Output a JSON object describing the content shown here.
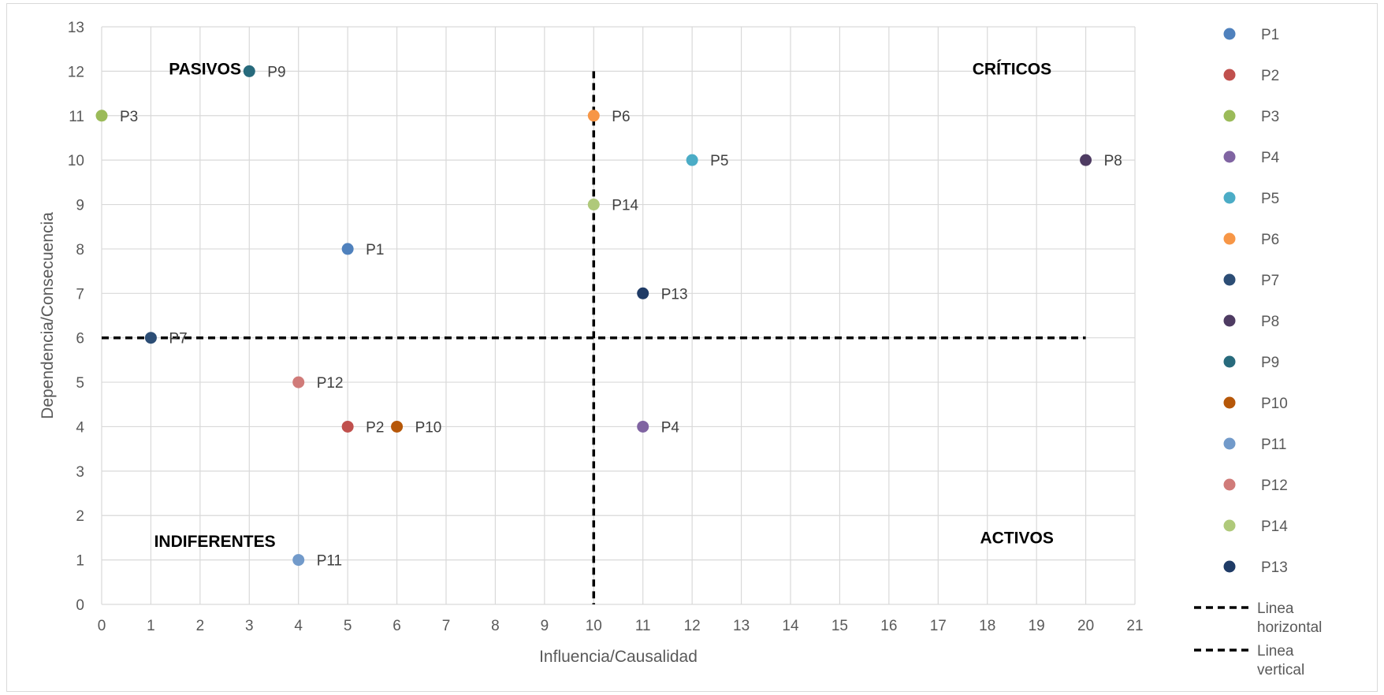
{
  "chart_data": {
    "type": "scatter",
    "xlabel": "Influencia/Causalidad",
    "ylabel": "Dependencia/Consecuencia",
    "xlim": [
      0,
      21
    ],
    "ylim": [
      0,
      13
    ],
    "x_ticks": [
      "0",
      "1",
      "2",
      "3",
      "4",
      "5",
      "6",
      "7",
      "8",
      "9",
      "10",
      "11",
      "12",
      "13",
      "14",
      "15",
      "16",
      "17",
      "18",
      "19",
      "20",
      "21"
    ],
    "y_ticks": [
      "0",
      "1",
      "2",
      "3",
      "4",
      "5",
      "6",
      "7",
      "8",
      "9",
      "10",
      "11",
      "12",
      "13"
    ],
    "grid": true,
    "legend_position": "right",
    "series": [
      {
        "name": "P1",
        "x": 5,
        "y": 8,
        "color": "#4f81bd"
      },
      {
        "name": "P2",
        "x": 5,
        "y": 4,
        "color": "#c0504d"
      },
      {
        "name": "P3",
        "x": 0,
        "y": 11,
        "color": "#9bbb59"
      },
      {
        "name": "P4",
        "x": 11,
        "y": 4,
        "color": "#8064a2"
      },
      {
        "name": "P5",
        "x": 12,
        "y": 10,
        "color": "#4bacc6"
      },
      {
        "name": "P6",
        "x": 10,
        "y": 11,
        "color": "#f79646"
      },
      {
        "name": "P7",
        "x": 1,
        "y": 6,
        "color": "#2c4d75"
      },
      {
        "name": "P8",
        "x": 20,
        "y": 10,
        "color": "#4e3b62"
      },
      {
        "name": "P9",
        "x": 3,
        "y": 12,
        "color": "#276a7c"
      },
      {
        "name": "P10",
        "x": 6,
        "y": 4,
        "color": "#b65708"
      },
      {
        "name": "P11",
        "x": 4,
        "y": 1,
        "color": "#729aca"
      },
      {
        "name": "P12",
        "x": 4,
        "y": 5,
        "color": "#d07b79"
      },
      {
        "name": "P14",
        "x": 10,
        "y": 9,
        "color": "#afc97a"
      },
      {
        "name": "P13",
        "x": 11,
        "y": 7,
        "color": "#1f3b66"
      }
    ],
    "lines": [
      {
        "name": "Linea horizontal",
        "points": [
          [
            0,
            6
          ],
          [
            20,
            6
          ]
        ],
        "color": "#000000",
        "style": "dashed"
      },
      {
        "name": "Linea vertical",
        "points": [
          [
            10,
            12
          ],
          [
            10,
            0
          ]
        ],
        "color": "#000000",
        "style": "dashed"
      }
    ],
    "annotations": [
      {
        "text": "PASIVOS",
        "x": 2.1,
        "y": 12.05
      },
      {
        "text": "CRÍTICOS",
        "x": 18.5,
        "y": 12.05
      },
      {
        "text": "INDIFERENTES",
        "x": 2.3,
        "y": 1.42
      },
      {
        "text": "ACTIVOS",
        "x": 18.6,
        "y": 1.5
      }
    ]
  }
}
